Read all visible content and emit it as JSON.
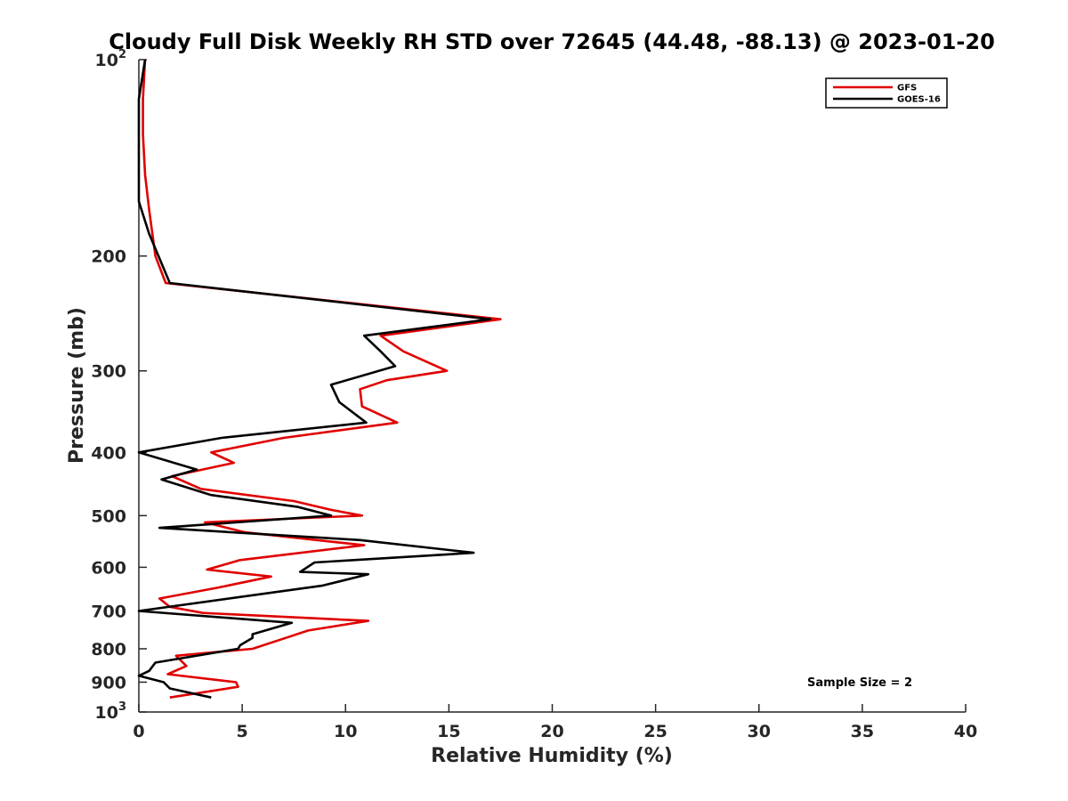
{
  "chart_data": {
    "type": "line",
    "title": "Cloudy Full Disk Weekly RH STD over 72645 (44.48, -88.13) @ 2023-01-20",
    "xlabel": "Relative Humidity (%)",
    "ylabel": "Pressure (mb)",
    "xlim": [
      0,
      40
    ],
    "ylim": [
      100,
      1000
    ],
    "yscale": "log",
    "yreversed": true,
    "grid": false,
    "legend_placement": "top-right",
    "x_ticks": [
      0,
      5,
      10,
      15,
      20,
      25,
      30,
      35,
      40
    ],
    "x_tick_labels": [
      "0",
      "5",
      "10",
      "15",
      "20",
      "25",
      "30",
      "35",
      "40"
    ],
    "y_ticks": [
      200,
      300,
      400,
      500,
      600,
      700,
      800,
      900
    ],
    "y_tick_labels": [
      "200",
      "300",
      "400",
      "500",
      "600",
      "700",
      "800",
      "900"
    ],
    "y_tick_ends": [
      {
        "value": 100,
        "base": "10",
        "exp": "2"
      },
      {
        "value": 1000,
        "base": "10",
        "exp": "3"
      }
    ],
    "annotation": "Sample Size = 2",
    "series": [
      {
        "name": "GFS",
        "color": "#e00000",
        "points": [
          [
            0.3,
            100
          ],
          [
            0.2,
            115
          ],
          [
            0.2,
            130
          ],
          [
            0.3,
            150
          ],
          [
            0.5,
            170
          ],
          [
            0.8,
            200
          ],
          [
            1.3,
            220
          ],
          [
            17.5,
            250
          ],
          [
            11.7,
            265
          ],
          [
            12.8,
            280
          ],
          [
            14.9,
            300
          ],
          [
            12.0,
            310
          ],
          [
            10.7,
            320
          ],
          [
            10.8,
            340
          ],
          [
            12.5,
            360
          ],
          [
            7.0,
            380
          ],
          [
            3.5,
            400
          ],
          [
            4.6,
            415
          ],
          [
            1.6,
            435
          ],
          [
            3.0,
            455
          ],
          [
            7.5,
            475
          ],
          [
            9.3,
            490
          ],
          [
            10.8,
            500
          ],
          [
            3.2,
            512
          ],
          [
            5.1,
            530
          ],
          [
            10.9,
            555
          ],
          [
            4.9,
            585
          ],
          [
            3.3,
            605
          ],
          [
            6.4,
            620
          ],
          [
            3.8,
            645
          ],
          [
            1.0,
            670
          ],
          [
            1.5,
            690
          ],
          [
            3.1,
            705
          ],
          [
            11.1,
            725
          ],
          [
            8.2,
            750
          ],
          [
            7.1,
            770
          ],
          [
            5.5,
            800
          ],
          [
            1.8,
            820
          ],
          [
            2.3,
            850
          ],
          [
            1.4,
            875
          ],
          [
            4.7,
            900
          ],
          [
            4.8,
            915
          ],
          [
            1.5,
            950
          ]
        ]
      },
      {
        "name": "GOES-16",
        "color": "#000000",
        "points": [
          [
            0.3,
            100
          ],
          [
            0.0,
            115
          ],
          [
            0.0,
            130
          ],
          [
            0.0,
            150
          ],
          [
            0.0,
            165
          ],
          [
            0.5,
            185
          ],
          [
            1.5,
            220
          ],
          [
            17.0,
            250
          ],
          [
            10.9,
            265
          ],
          [
            11.7,
            280
          ],
          [
            12.4,
            295
          ],
          [
            9.3,
            315
          ],
          [
            9.7,
            335
          ],
          [
            11.0,
            360
          ],
          [
            4.0,
            380
          ],
          [
            0.0,
            400
          ],
          [
            2.8,
            425
          ],
          [
            1.1,
            440
          ],
          [
            3.5,
            465
          ],
          [
            7.7,
            485
          ],
          [
            9.3,
            500
          ],
          [
            1.0,
            522
          ],
          [
            10.7,
            545
          ],
          [
            16.2,
            570
          ],
          [
            8.5,
            590
          ],
          [
            7.8,
            610
          ],
          [
            11.1,
            615
          ],
          [
            8.9,
            640
          ],
          [
            0.0,
            700
          ],
          [
            7.4,
            730
          ],
          [
            5.5,
            760
          ],
          [
            5.5,
            770
          ],
          [
            4.9,
            790
          ],
          [
            4.8,
            800
          ],
          [
            0.8,
            840
          ],
          [
            0.5,
            865
          ],
          [
            0.0,
            880
          ],
          [
            1.2,
            900
          ],
          [
            1.5,
            920
          ],
          [
            3.5,
            950
          ]
        ]
      }
    ]
  }
}
